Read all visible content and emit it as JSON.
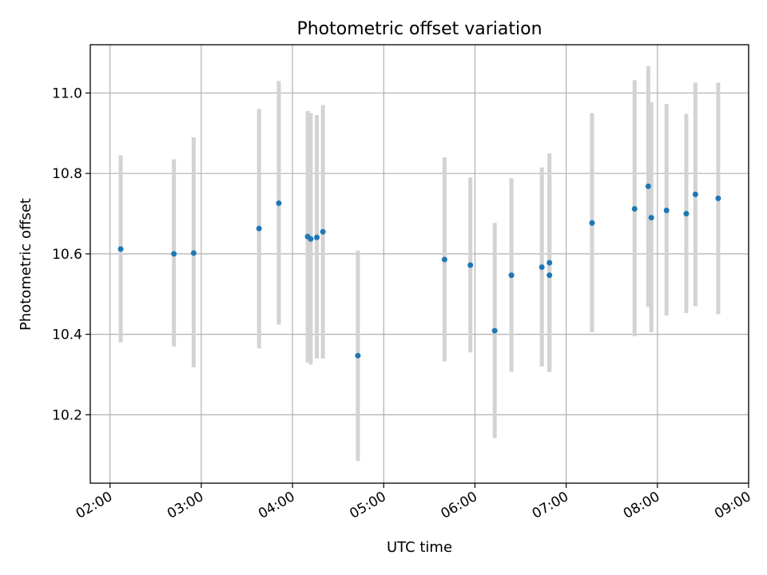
{
  "chart_data": {
    "type": "scatter",
    "title": "Photometric offset variation",
    "xlabel": "UTC time",
    "ylabel": "Photometric offset",
    "xlim": [
      "01:47",
      "09:00"
    ],
    "ylim": [
      10.03,
      11.12
    ],
    "x_ticks": [
      "02:00",
      "03:00",
      "04:00",
      "05:00",
      "06:00",
      "07:00",
      "08:00",
      "09:00"
    ],
    "y_ticks": [
      "10.2",
      "10.4",
      "10.6",
      "10.8",
      "11.0"
    ],
    "grid": true,
    "colors": {
      "point": "#1f77b4",
      "errorbar": "#d3d3d3",
      "grid": "#b0b0b0"
    },
    "points": [
      {
        "x": "02:07",
        "y": 10.612,
        "yerr_low": 10.38,
        "yerr_high": 10.845
      },
      {
        "x": "02:42",
        "y": 10.6,
        "yerr_low": 10.37,
        "yerr_high": 10.835
      },
      {
        "x": "02:55",
        "y": 10.602,
        "yerr_low": 10.318,
        "yerr_high": 10.89
      },
      {
        "x": "03:38",
        "y": 10.663,
        "yerr_low": 10.365,
        "yerr_high": 10.96
      },
      {
        "x": "03:51",
        "y": 10.726,
        "yerr_low": 10.424,
        "yerr_high": 11.03
      },
      {
        "x": "04:10",
        "y": 10.643,
        "yerr_low": 10.33,
        "yerr_high": 10.955
      },
      {
        "x": "04:12",
        "y": 10.637,
        "yerr_low": 10.325,
        "yerr_high": 10.95
      },
      {
        "x": "04:16",
        "y": 10.641,
        "yerr_low": 10.34,
        "yerr_high": 10.945
      },
      {
        "x": "04:20",
        "y": 10.655,
        "yerr_low": 10.34,
        "yerr_high": 10.97
      },
      {
        "x": "04:43",
        "y": 10.347,
        "yerr_low": 10.085,
        "yerr_high": 10.608
      },
      {
        "x": "05:40",
        "y": 10.586,
        "yerr_low": 10.333,
        "yerr_high": 10.84
      },
      {
        "x": "05:57",
        "y": 10.572,
        "yerr_low": 10.355,
        "yerr_high": 10.79
      },
      {
        "x": "06:13",
        "y": 10.409,
        "yerr_low": 10.142,
        "yerr_high": 10.677
      },
      {
        "x": "06:24",
        "y": 10.547,
        "yerr_low": 10.307,
        "yerr_high": 10.788
      },
      {
        "x": "06:44",
        "y": 10.567,
        "yerr_low": 10.32,
        "yerr_high": 10.815
      },
      {
        "x": "06:49",
        "y": 10.578,
        "yerr_low": 10.306,
        "yerr_high": 10.85
      },
      {
        "x": "06:49",
        "y": 10.547,
        "yerr_low": 10.306,
        "yerr_high": 10.79
      },
      {
        "x": "07:17",
        "y": 10.677,
        "yerr_low": 10.405,
        "yerr_high": 10.95
      },
      {
        "x": "07:45",
        "y": 10.712,
        "yerr_low": 10.395,
        "yerr_high": 11.032
      },
      {
        "x": "07:54",
        "y": 10.768,
        "yerr_low": 10.468,
        "yerr_high": 11.067
      },
      {
        "x": "07:56",
        "y": 10.69,
        "yerr_low": 10.405,
        "yerr_high": 10.977
      },
      {
        "x": "08:06",
        "y": 10.708,
        "yerr_low": 10.447,
        "yerr_high": 10.973
      },
      {
        "x": "08:19",
        "y": 10.7,
        "yerr_low": 10.453,
        "yerr_high": 10.948
      },
      {
        "x": "08:25",
        "y": 10.748,
        "yerr_low": 10.47,
        "yerr_high": 11.026
      },
      {
        "x": "08:40",
        "y": 10.738,
        "yerr_low": 10.45,
        "yerr_high": 11.026
      }
    ]
  }
}
